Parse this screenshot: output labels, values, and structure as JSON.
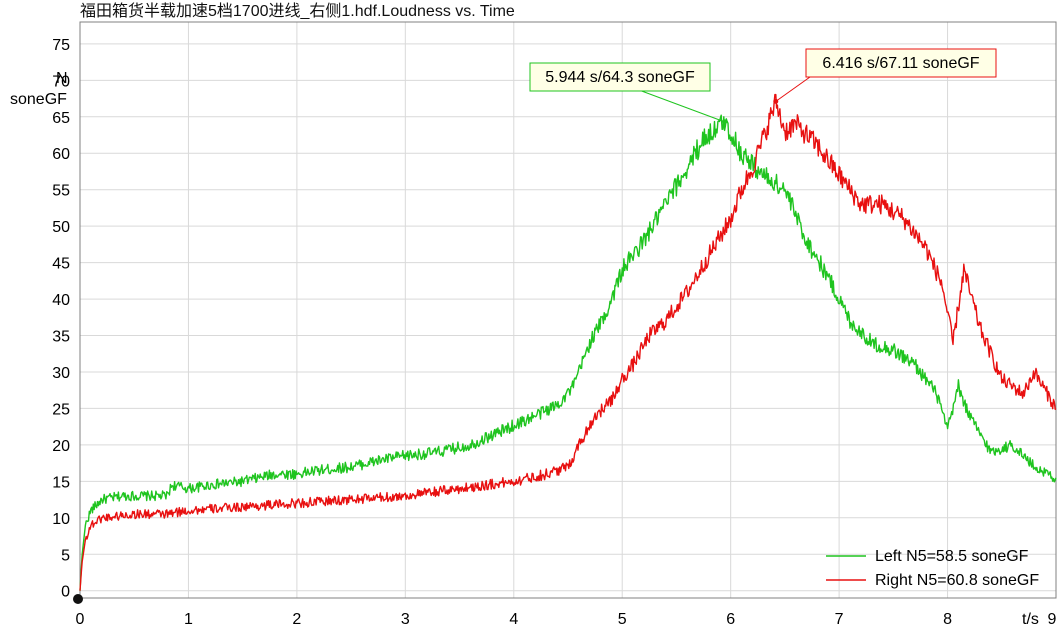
{
  "chart_data": {
    "type": "line",
    "title": "福田箱货半载加速5档1700进线_右侧1.hdf.Loudness vs. Time",
    "xlabel": "t/s",
    "ylabel_line1": "N",
    "ylabel_line2": "soneGF",
    "xlim": [
      0,
      9
    ],
    "ylim": [
      -1,
      78
    ],
    "x_ticks": [
      "0",
      "1",
      "2",
      "3",
      "4",
      "5",
      "6",
      "7",
      "8",
      "9"
    ],
    "y_ticks": [
      "0",
      "5",
      "10",
      "15",
      "20",
      "25",
      "30",
      "35",
      "40",
      "45",
      "50",
      "55",
      "60",
      "65",
      "70",
      "75"
    ],
    "grid": true,
    "legend_position": "bottom-right",
    "series": [
      {
        "name": "Left N5=58.5 soneGF",
        "color": "#1fc41f",
        "points": [
          [
            0,
            0
          ],
          [
            0.02,
            5
          ],
          [
            0.05,
            9
          ],
          [
            0.1,
            11
          ],
          [
            0.2,
            12.5
          ],
          [
            0.4,
            13
          ],
          [
            0.6,
            13
          ],
          [
            0.8,
            13
          ],
          [
            0.85,
            14.5
          ],
          [
            1,
            14
          ],
          [
            1.2,
            14.5
          ],
          [
            1.5,
            15
          ],
          [
            1.8,
            16
          ],
          [
            2,
            16
          ],
          [
            2.2,
            16.5
          ],
          [
            2.5,
            17
          ],
          [
            2.8,
            18
          ],
          [
            3,
            18.5
          ],
          [
            3.3,
            19
          ],
          [
            3.6,
            20
          ],
          [
            3.9,
            22
          ],
          [
            4.2,
            24
          ],
          [
            4.4,
            25.5
          ],
          [
            4.55,
            28
          ],
          [
            4.7,
            34
          ],
          [
            4.85,
            38
          ],
          [
            5.0,
            44
          ],
          [
            5.2,
            48
          ],
          [
            5.4,
            53
          ],
          [
            5.6,
            58
          ],
          [
            5.75,
            62
          ],
          [
            5.944,
            64.3
          ],
          [
            6.1,
            60
          ],
          [
            6.3,
            57
          ],
          [
            6.5,
            55
          ],
          [
            6.7,
            48
          ],
          [
            6.9,
            43
          ],
          [
            7.1,
            37
          ],
          [
            7.3,
            34
          ],
          [
            7.5,
            33
          ],
          [
            7.7,
            31
          ],
          [
            7.9,
            27
          ],
          [
            8.0,
            22
          ],
          [
            8.1,
            28
          ],
          [
            8.2,
            24
          ],
          [
            8.4,
            19
          ],
          [
            8.6,
            20
          ],
          [
            8.8,
            17
          ],
          [
            9.0,
            15.5
          ]
        ]
      },
      {
        "name": "Right N5=60.8 soneGF",
        "color": "#e81010",
        "points": [
          [
            0,
            0
          ],
          [
            0.02,
            4
          ],
          [
            0.05,
            7
          ],
          [
            0.1,
            9
          ],
          [
            0.2,
            10
          ],
          [
            0.5,
            10.5
          ],
          [
            0.8,
            10.5
          ],
          [
            1,
            11
          ],
          [
            1.5,
            11.5
          ],
          [
            2,
            12
          ],
          [
            2.5,
            12.5
          ],
          [
            3,
            13
          ],
          [
            3.5,
            14
          ],
          [
            4,
            15
          ],
          [
            4.3,
            16
          ],
          [
            4.5,
            17
          ],
          [
            4.6,
            20
          ],
          [
            4.75,
            24
          ],
          [
            4.9,
            26
          ],
          [
            5.0,
            29
          ],
          [
            5.1,
            31
          ],
          [
            5.25,
            35
          ],
          [
            5.4,
            37
          ],
          [
            5.6,
            41
          ],
          [
            5.8,
            46
          ],
          [
            6.0,
            51
          ],
          [
            6.1,
            55
          ],
          [
            6.2,
            58
          ],
          [
            6.3,
            62
          ],
          [
            6.416,
            67.11
          ],
          [
            6.5,
            63
          ],
          [
            6.6,
            64
          ],
          [
            6.8,
            61
          ],
          [
            7.0,
            57
          ],
          [
            7.2,
            53
          ],
          [
            7.4,
            53
          ],
          [
            7.6,
            51
          ],
          [
            7.8,
            47
          ],
          [
            7.95,
            42
          ],
          [
            8.05,
            34
          ],
          [
            8.15,
            44
          ],
          [
            8.3,
            36
          ],
          [
            8.5,
            29
          ],
          [
            8.7,
            27
          ],
          [
            8.8,
            30
          ],
          [
            9.0,
            25
          ]
        ]
      }
    ],
    "annotations": [
      {
        "text": "5.944 s/64.3 soneGF",
        "x": 5.944,
        "y": 64.3,
        "series": 0
      },
      {
        "text": "6.416 s/67.11 soneGF",
        "x": 6.416,
        "y": 67.11,
        "series": 1
      }
    ]
  }
}
